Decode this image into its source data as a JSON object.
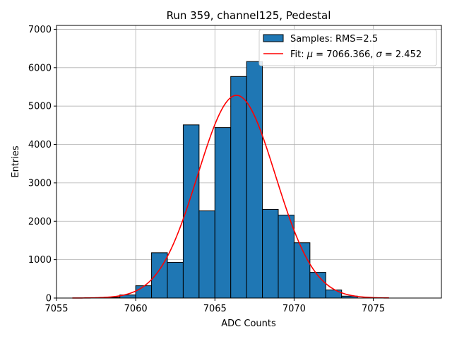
{
  "chart_data": {
    "type": "bar",
    "title": "Run 359, channel125, Pedestal",
    "xlabel": "ADC Counts",
    "ylabel": "Entries",
    "xlim": [
      7055,
      7079.3
    ],
    "ylim": [
      0,
      7100
    ],
    "xticks": [
      7055,
      7060,
      7065,
      7070,
      7075
    ],
    "yticks": [
      0,
      1000,
      2000,
      3000,
      4000,
      5000,
      6000,
      7000
    ],
    "grid": true,
    "legend_position": "top-right",
    "bin_width": 1,
    "bins": [
      {
        "left": 7058,
        "count": 20
      },
      {
        "left": 7059,
        "count": 80
      },
      {
        "left": 7060,
        "count": 320
      },
      {
        "left": 7061,
        "count": 1180
      },
      {
        "left": 7062,
        "count": 930
      },
      {
        "left": 7063,
        "count": 4510
      },
      {
        "left": 7064,
        "count": 2270
      },
      {
        "left": 7065,
        "count": 4440
      },
      {
        "left": 7066,
        "count": 5770
      },
      {
        "left": 7067,
        "count": 6160
      },
      {
        "left": 7068,
        "count": 2310
      },
      {
        "left": 7069,
        "count": 2160
      },
      {
        "left": 7070,
        "count": 1440
      },
      {
        "left": 7071,
        "count": 670
      },
      {
        "left": 7072,
        "count": 210
      },
      {
        "left": 7073,
        "count": 50
      }
    ],
    "fit": {
      "mu": 7066.366,
      "sigma": 2.452,
      "amplitude": 5280,
      "x_range": [
        7056,
        7076
      ]
    },
    "legend": {
      "samples_label": "Samples: RMS=2.5",
      "fit_label_prefix": "Fit: ",
      "fit_mu_symbol": "μ",
      "fit_mu_value": " = 7066.366, ",
      "fit_sigma_symbol": "σ",
      "fit_sigma_value": " = 2.452"
    },
    "colors": {
      "bar_fill": "#1f77b4",
      "bar_edge": "#000000",
      "fit_line": "#ff0000",
      "grid": "#b0b0b0"
    }
  }
}
